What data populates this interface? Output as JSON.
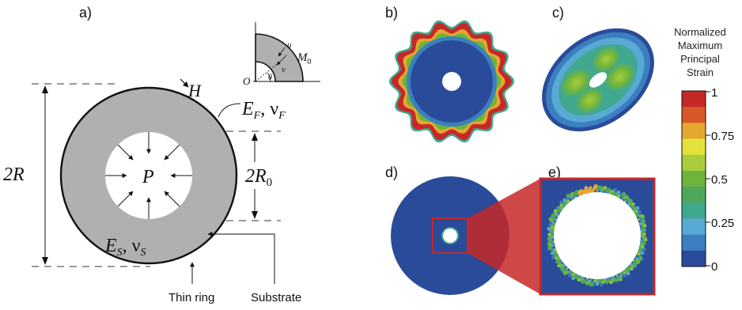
{
  "panels": {
    "a": "a)",
    "b": "b)",
    "c": "c)",
    "d": "d)",
    "e": "e)"
  },
  "schematic": {
    "two_r": "2R",
    "two_r0": "2R",
    "two_r0_sub": "0",
    "pressure": "P",
    "thickness": "H",
    "film_props_E": "E",
    "film_props_E_sub": "F",
    "film_props_nu": "ν",
    "film_props_nu_sub": "F",
    "sub_props_E": "E",
    "sub_props_E_sub": "S",
    "sub_props_nu": "ν",
    "sub_props_nu_sub": "S",
    "thin_ring": "Thin ring",
    "substrate": "Substrate",
    "inset_u": "u",
    "inset_v": "v",
    "inset_M": "M",
    "inset_M_sub": "0",
    "inset_O": "O",
    "inset_theta": "θ"
  },
  "colorbar": {
    "title_lines": [
      "Normalized",
      "Maximum",
      "Principal",
      "Strain"
    ],
    "ticks": [
      "1",
      "0.75",
      "0.5",
      "0.25",
      "0"
    ],
    "colors": [
      "#c62828",
      "#d8582a",
      "#e6a731",
      "#e3e23b",
      "#a9cd3c",
      "#6fb43d",
      "#4ea85a",
      "#3fa88f",
      "#58a9d4",
      "#3b7fc1",
      "#2a4b99"
    ]
  },
  "colors": {
    "ring_gray": "#b0b0b0",
    "deep_blue": "#2a4b99",
    "callout_red": "#c62828"
  }
}
